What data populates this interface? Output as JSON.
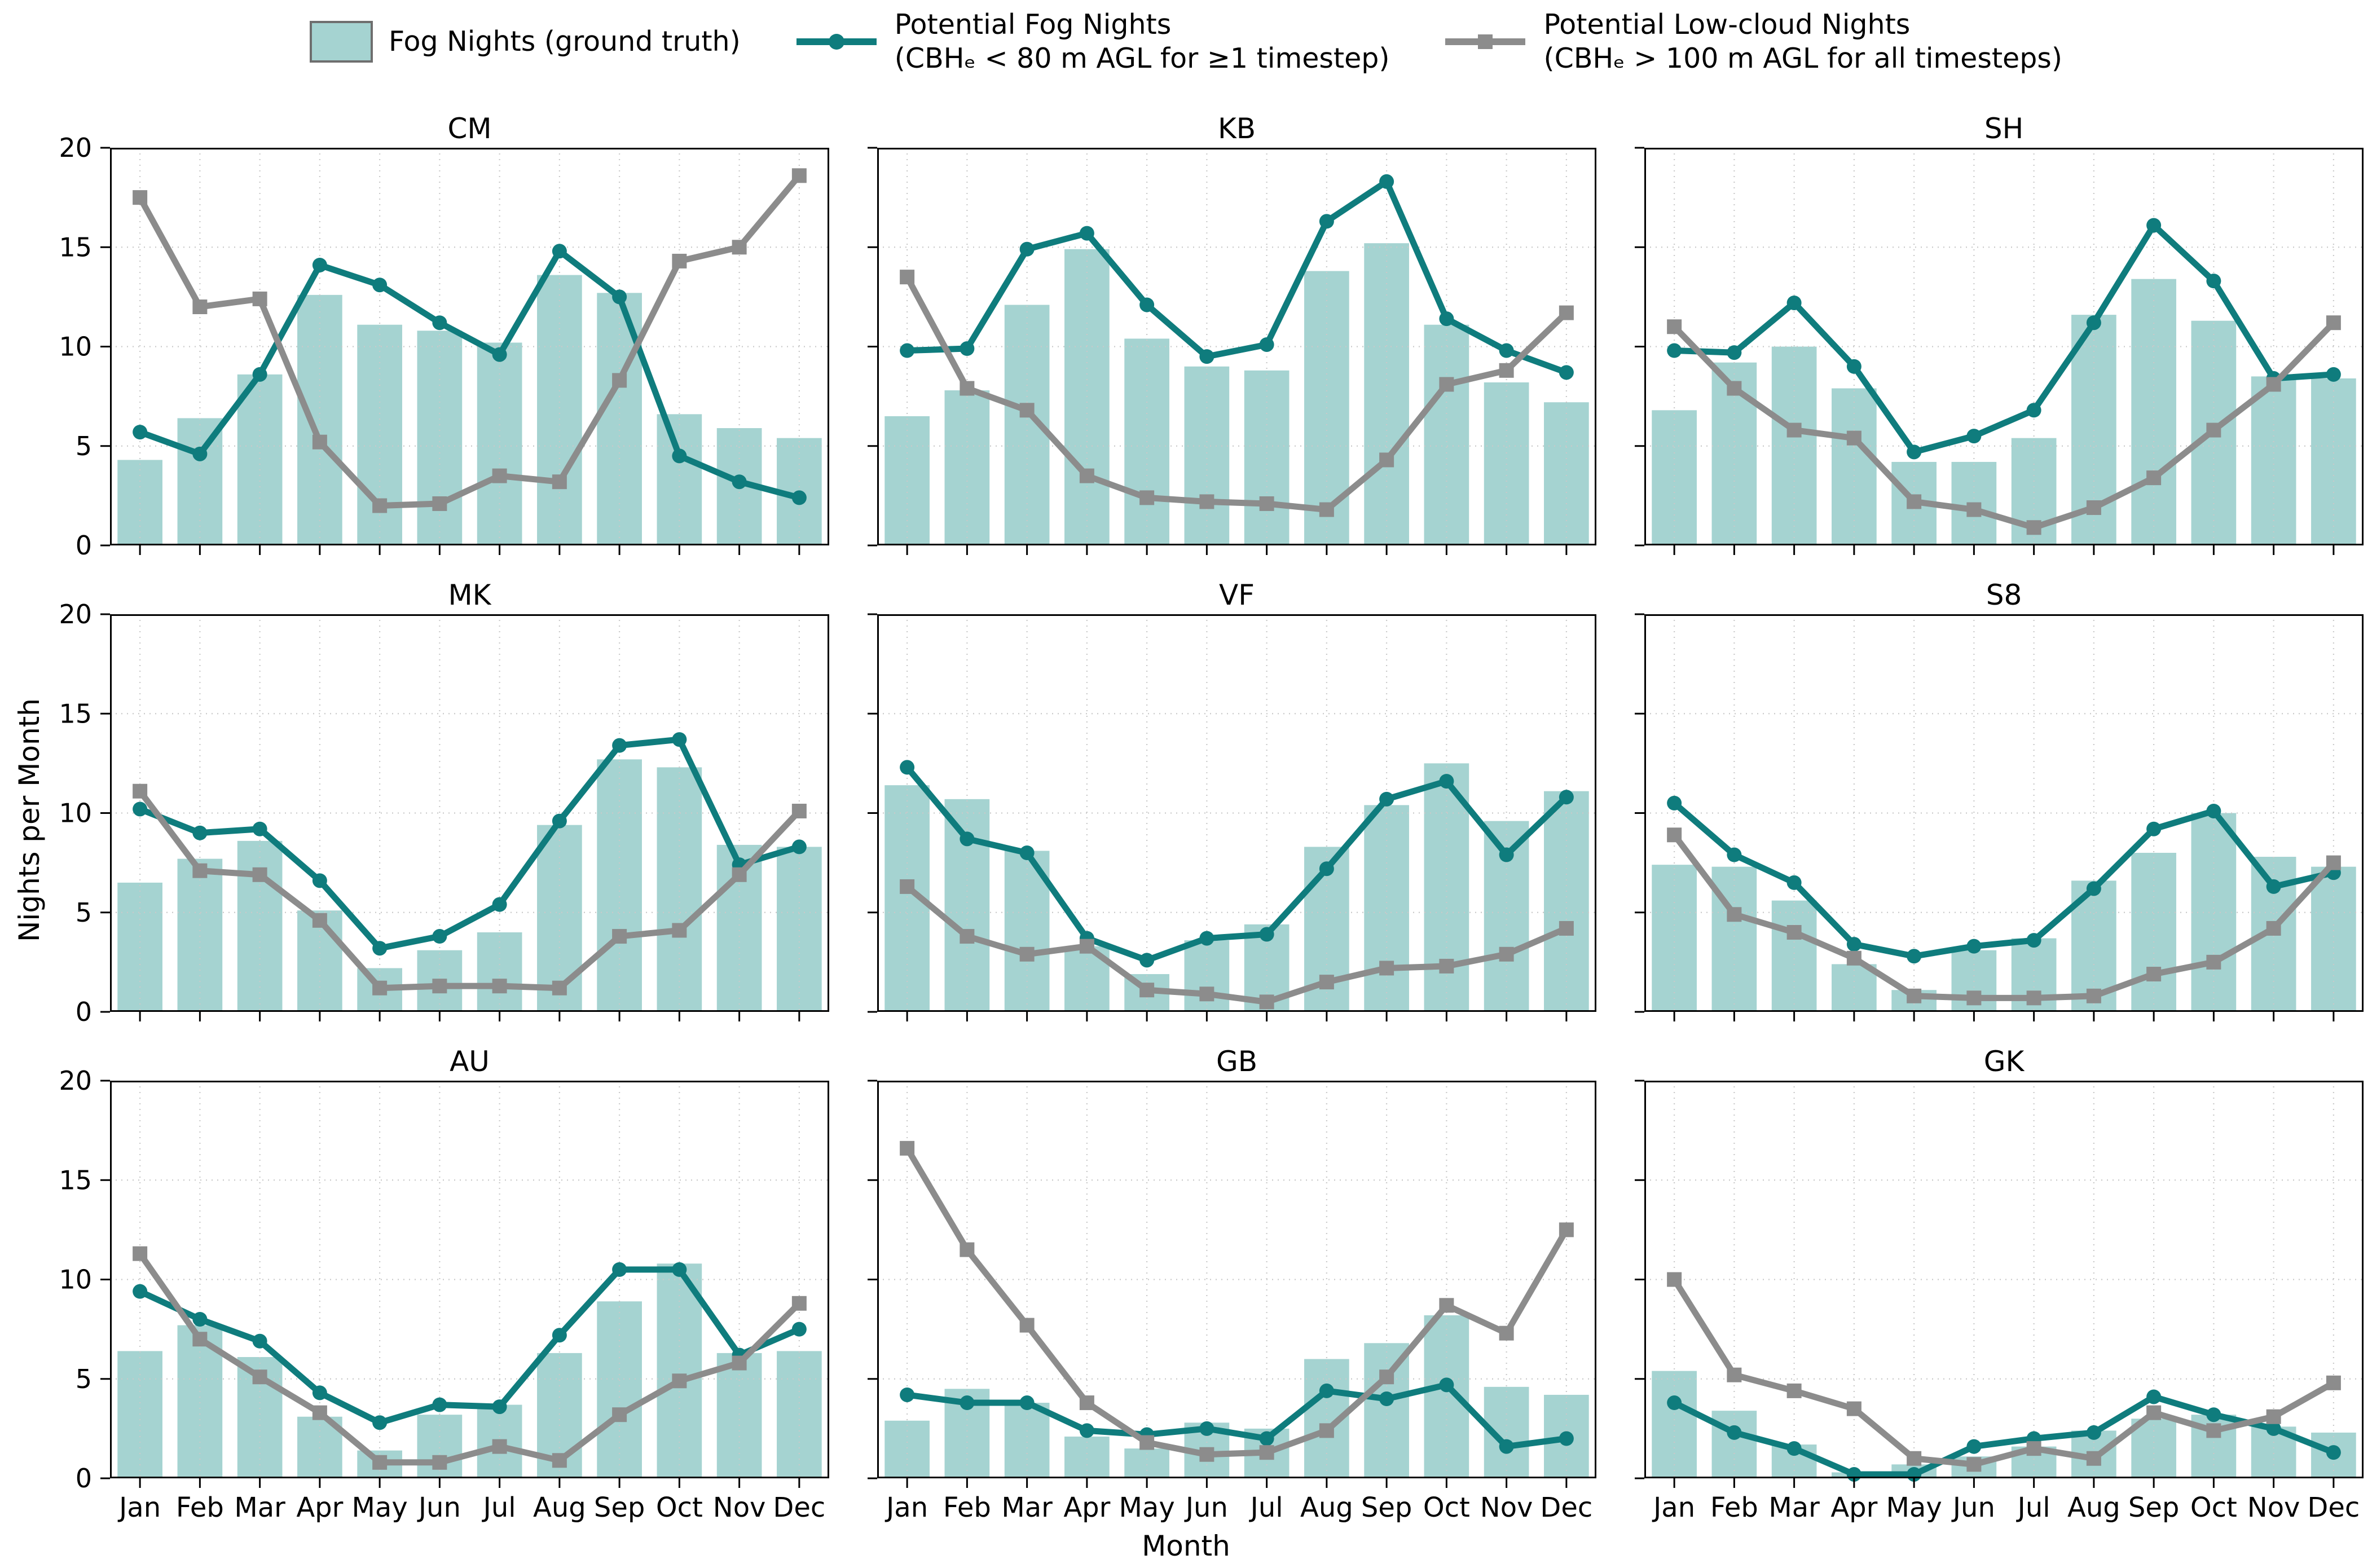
{
  "legend": {
    "bar": {
      "label": "Fog Nights (ground truth)"
    },
    "fog": {
      "label_line1": "Potential Fog Nights",
      "label_line2": "(CBHₑ < 80 m AGL for ≥1 timestep)"
    },
    "lowcloud": {
      "label_line1": "Potential Low-cloud Nights",
      "label_line2": "(CBHₑ > 100 m AGL for all timesteps)"
    }
  },
  "axes": {
    "ylabel": "Nights per Month",
    "xlabel": "Month"
  },
  "colors": {
    "bar_fill": "#a5d3d1",
    "fog_line": "#0f7c7d",
    "lowcloud_line": "#8c8c8c",
    "gridline": "#c9c9c9",
    "spine": "#000000"
  },
  "chart_data": {
    "type": "bar",
    "note": "3x3 grid of monthly subplots; bars = Fog Nights (ground truth); line series: fog = Potential Fog Nights (teal, circle markers), lowcloud = Potential Low-cloud Nights (gray, square markers)",
    "categories": [
      "Jan",
      "Feb",
      "Mar",
      "Apr",
      "May",
      "Jun",
      "Jul",
      "Aug",
      "Sep",
      "Oct",
      "Nov",
      "Dec"
    ],
    "ylim": [
      0,
      20
    ],
    "yticks": [
      0,
      5,
      10,
      15,
      20
    ],
    "ylabel": "Nights per Month",
    "xlabel": "Month",
    "grid": true,
    "legend_position": "top-center",
    "stations": [
      {
        "station": "CM",
        "fog_nights_bars": [
          4.3,
          6.4,
          8.6,
          12.6,
          11.1,
          10.8,
          10.2,
          13.6,
          12.7,
          6.6,
          5.9,
          5.4
        ],
        "potential_fog_line": [
          5.7,
          4.6,
          8.6,
          14.1,
          13.1,
          11.2,
          9.6,
          14.8,
          12.5,
          4.5,
          3.2,
          2.4
        ],
        "potential_lowcloud_line": [
          17.5,
          12.0,
          12.4,
          5.2,
          2.0,
          2.1,
          3.5,
          3.2,
          8.3,
          14.3,
          15.0,
          18.6
        ]
      },
      {
        "station": "KB",
        "fog_nights_bars": [
          6.5,
          7.8,
          12.1,
          14.9,
          10.4,
          9.0,
          8.8,
          13.8,
          15.2,
          11.1,
          8.2,
          7.2
        ],
        "potential_fog_line": [
          9.8,
          9.9,
          14.9,
          15.7,
          12.1,
          9.5,
          10.1,
          16.3,
          18.3,
          11.4,
          9.8,
          8.7
        ],
        "potential_lowcloud_line": [
          13.5,
          7.9,
          6.8,
          3.5,
          2.4,
          2.2,
          2.1,
          1.8,
          4.3,
          8.1,
          8.8,
          11.7
        ]
      },
      {
        "station": "SH",
        "fog_nights_bars": [
          6.8,
          9.2,
          10.0,
          7.9,
          4.2,
          4.2,
          5.4,
          11.6,
          13.4,
          11.3,
          8.5,
          8.4
        ],
        "potential_fog_line": [
          9.8,
          9.7,
          12.2,
          9.0,
          4.7,
          5.5,
          6.8,
          11.2,
          16.1,
          13.3,
          8.4,
          8.6
        ],
        "potential_lowcloud_line": [
          11.0,
          7.9,
          5.8,
          5.4,
          2.2,
          1.8,
          0.9,
          1.9,
          3.4,
          5.8,
          8.1,
          11.2
        ]
      },
      {
        "station": "MK",
        "fog_nights_bars": [
          6.5,
          7.7,
          8.6,
          5.1,
          2.2,
          3.1,
          4.0,
          9.4,
          12.7,
          12.3,
          8.4,
          8.3
        ],
        "potential_fog_line": [
          10.2,
          9.0,
          9.2,
          6.6,
          3.2,
          3.8,
          5.4,
          9.6,
          13.4,
          13.7,
          7.4,
          8.3
        ],
        "potential_lowcloud_line": [
          11.1,
          7.1,
          6.9,
          4.6,
          1.2,
          1.3,
          1.3,
          1.2,
          3.8,
          4.1,
          6.9,
          10.1
        ]
      },
      {
        "station": "VF",
        "fog_nights_bars": [
          11.4,
          10.7,
          8.1,
          3.3,
          1.9,
          3.6,
          4.4,
          8.3,
          10.4,
          12.5,
          9.6,
          11.1
        ],
        "potential_fog_line": [
          12.3,
          8.7,
          8.0,
          3.7,
          2.6,
          3.7,
          3.9,
          7.2,
          10.7,
          11.6,
          7.9,
          10.8
        ],
        "potential_lowcloud_line": [
          6.3,
          3.8,
          2.9,
          3.3,
          1.1,
          0.9,
          0.5,
          1.5,
          2.2,
          2.3,
          2.9,
          4.2
        ]
      },
      {
        "station": "S8",
        "fog_nights_bars": [
          7.4,
          7.3,
          5.6,
          2.4,
          1.1,
          3.1,
          3.7,
          6.6,
          8.0,
          10.0,
          7.8,
          7.3
        ],
        "potential_fog_line": [
          10.5,
          7.9,
          6.5,
          3.4,
          2.8,
          3.3,
          3.6,
          6.2,
          9.2,
          10.1,
          6.3,
          7.0
        ],
        "potential_lowcloud_line": [
          8.9,
          4.9,
          4.0,
          2.7,
          0.8,
          0.7,
          0.7,
          0.8,
          1.9,
          2.5,
          4.2,
          7.5
        ]
      },
      {
        "station": "AU",
        "fog_nights_bars": [
          6.4,
          7.7,
          6.1,
          3.1,
          1.4,
          3.2,
          3.7,
          6.3,
          8.9,
          10.8,
          6.3,
          6.4
        ],
        "potential_fog_line": [
          9.4,
          8.0,
          6.9,
          4.3,
          2.8,
          3.7,
          3.6,
          7.2,
          10.5,
          10.5,
          6.2,
          7.5
        ],
        "potential_lowcloud_line": [
          11.3,
          7.0,
          5.1,
          3.3,
          0.8,
          0.8,
          1.6,
          0.9,
          3.2,
          4.9,
          5.8,
          8.8
        ]
      },
      {
        "station": "GB",
        "fog_nights_bars": [
          2.9,
          4.5,
          3.8,
          2.1,
          1.5,
          2.8,
          2.5,
          6.0,
          6.8,
          8.2,
          4.6,
          4.2
        ],
        "potential_fog_line": [
          4.2,
          3.8,
          3.8,
          2.4,
          2.2,
          2.5,
          2.0,
          4.4,
          4.0,
          4.7,
          1.6,
          2.0
        ],
        "potential_lowcloud_line": [
          16.6,
          11.5,
          7.7,
          3.8,
          1.8,
          1.2,
          1.3,
          2.4,
          5.1,
          8.7,
          7.3,
          12.5
        ]
      },
      {
        "station": "GK",
        "fog_nights_bars": [
          5.4,
          3.4,
          1.7,
          0.3,
          0.7,
          1.1,
          1.6,
          2.4,
          3.0,
          3.2,
          2.6,
          2.3
        ],
        "potential_fog_line": [
          3.8,
          2.3,
          1.5,
          0.2,
          0.2,
          1.6,
          2.0,
          2.3,
          4.1,
          3.2,
          2.5,
          1.3
        ],
        "potential_lowcloud_line": [
          10.0,
          5.2,
          4.4,
          3.5,
          1.0,
          0.7,
          1.5,
          1.0,
          3.3,
          2.4,
          3.1,
          4.8
        ]
      }
    ]
  }
}
